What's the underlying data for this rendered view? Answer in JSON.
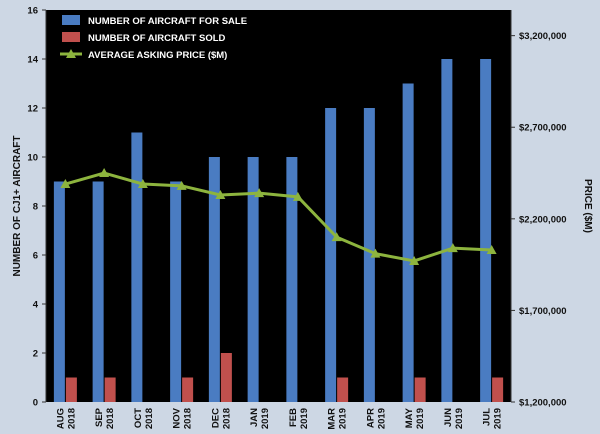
{
  "chart_data": {
    "type": "bar",
    "categories": [
      [
        "AUG",
        "2018"
      ],
      [
        "SEP",
        "2018"
      ],
      [
        "OCT",
        "2018"
      ],
      [
        "NOV",
        "2018"
      ],
      [
        "DEC",
        "2018"
      ],
      [
        "JAN",
        "2019"
      ],
      [
        "FEB",
        "2019"
      ],
      [
        "MAR",
        "2019"
      ],
      [
        "APR",
        "2019"
      ],
      [
        "MAY",
        "2019"
      ],
      [
        "JUN",
        "2019"
      ],
      [
        "JUL",
        "2019"
      ]
    ],
    "series": [
      {
        "name": "NUMBER OF AIRCRAFT FOR SALE",
        "type": "bar",
        "axis": "left",
        "color": "#4a7cc2",
        "values": [
          9,
          9,
          11,
          9,
          10,
          10,
          10,
          12,
          12,
          13,
          14,
          14
        ]
      },
      {
        "name": "NUMBER OF AIRCRAFT SOLD",
        "type": "bar",
        "axis": "left",
        "color": "#c0504d",
        "values": [
          1,
          1,
          0,
          1,
          2,
          0,
          0,
          1,
          0,
          1,
          0,
          1
        ]
      },
      {
        "name": "AVERAGE ASKING PRICE ($M)",
        "type": "line",
        "axis": "right",
        "color": "#8db43e",
        "values": [
          2390000,
          2450000,
          2390000,
          2380000,
          2330000,
          2340000,
          2320000,
          2100000,
          2010000,
          1970000,
          2040000,
          2030000
        ]
      }
    ],
    "ylabel": "NUMBER OF CJ1+ AIRCRAFT",
    "ylim": [
      0,
      16
    ],
    "yticks": [
      "0",
      "2",
      "4",
      "6",
      "8",
      "10",
      "12",
      "14",
      "16"
    ],
    "y2label": "PRICE ($M)",
    "y2lim": [
      1200000,
      3340000
    ],
    "y2ticks": [
      {
        "value": 1200000,
        "label": "$1,200,000"
      },
      {
        "value": 1700000,
        "label": "$1,700,000"
      },
      {
        "value": 2200000,
        "label": "$2,200,000"
      },
      {
        "value": 2700000,
        "label": "$2,700,000"
      },
      {
        "value": 3200000,
        "label": "$3,200,000"
      }
    ],
    "legend_position": "top-left",
    "grid": false,
    "plot_background": "#000000",
    "page_background": "#cdd7e4"
  }
}
